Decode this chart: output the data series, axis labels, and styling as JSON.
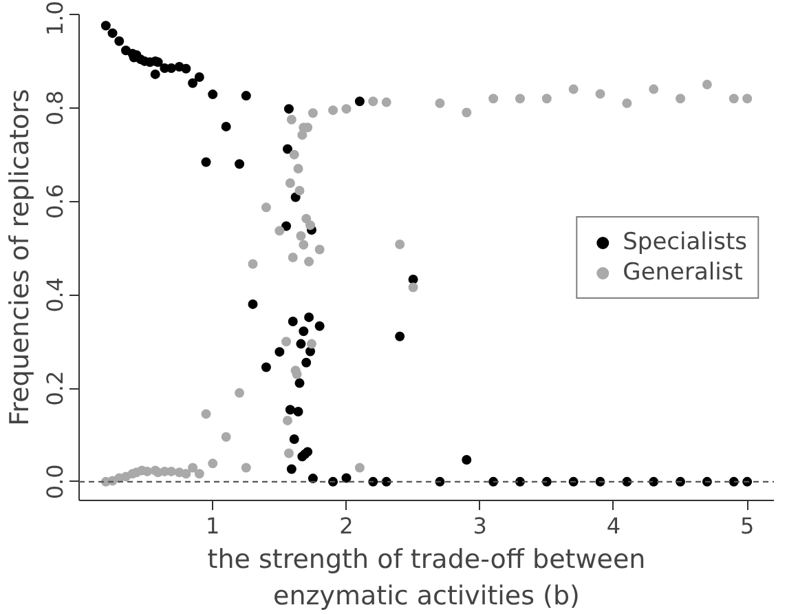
{
  "chart_data": {
    "type": "scatter",
    "xlabel": "the strength of trade-off between enzymatic activities (b)",
    "ylabel": "Frequencies of replicators",
    "xlim": [
      0.0,
      5.2
    ],
    "xticks": [
      1,
      2,
      3,
      4,
      5
    ],
    "ylim": [
      -0.04,
      1.0
    ],
    "yticks": [
      {
        "value": 0,
        "label": "0.0"
      },
      {
        "value": 0.2,
        "label": "0.2"
      },
      {
        "value": 0.4,
        "label": "0.4"
      },
      {
        "value": 0.6,
        "label": "0.6"
      },
      {
        "value": 0.8,
        "label": "0.8"
      },
      {
        "value": 1,
        "label": "1.0"
      }
    ],
    "grid": false,
    "legend": "right",
    "marker": "circle",
    "ref_lines": [
      {
        "axis": "y",
        "value": 0,
        "color": "#555555",
        "line_style": "dashed"
      }
    ],
    "series": [
      {
        "name": "Specialists",
        "color": "#000000",
        "x": [
          0.2,
          0.25,
          0.3,
          0.35,
          0.4,
          0.43,
          0.41,
          0.46,
          0.49,
          0.53,
          0.57,
          0.59,
          0.57,
          0.64,
          0.69,
          0.75,
          0.8,
          0.85,
          0.9,
          1.0,
          1.25,
          1.1,
          0.95,
          1.2,
          1.57,
          1.56,
          1.62,
          1.55,
          1.74,
          2.1,
          1.3,
          1.6,
          1.72,
          1.68,
          1.8,
          1.66,
          1.73,
          1.5,
          1.4,
          1.7,
          1.65,
          1.58,
          1.64,
          1.61,
          1.71,
          1.67,
          1.69,
          1.59,
          1.75,
          1.9,
          2.0,
          2.2,
          2.3,
          2.4,
          2.5,
          2.7,
          2.9,
          3.1,
          3.3,
          3.5,
          3.7,
          3.9,
          4.1,
          4.3,
          4.5,
          4.7,
          4.9,
          5.0
        ],
        "values": [
          0.976,
          0.96,
          0.943,
          0.923,
          0.916,
          0.913,
          0.908,
          0.904,
          0.9,
          0.898,
          0.9,
          0.898,
          0.872,
          0.885,
          0.885,
          0.888,
          0.884,
          0.853,
          0.866,
          0.829,
          0.826,
          0.76,
          0.684,
          0.68,
          0.798,
          0.712,
          0.609,
          0.547,
          0.539,
          0.814,
          0.38,
          0.343,
          0.352,
          0.322,
          0.333,
          0.295,
          0.279,
          0.278,
          0.245,
          0.255,
          0.211,
          0.154,
          0.15,
          0.091,
          0.064,
          0.054,
          0.059,
          0.027,
          0.007,
          0.0,
          0.008,
          0.0,
          0.0,
          0.311,
          0.433,
          0.0,
          0.047,
          0.0,
          0.0,
          0.0,
          0.0,
          0.0,
          0.0,
          0.0,
          0.0,
          0.0,
          0.0,
          0.0
        ]
      },
      {
        "name": "Generalist",
        "color": "#a9a9a9",
        "x": [
          0.2,
          0.25,
          0.3,
          0.35,
          0.4,
          0.43,
          0.47,
          0.51,
          0.57,
          0.59,
          0.64,
          0.69,
          0.75,
          0.8,
          0.85,
          0.9,
          1.0,
          1.1,
          0.95,
          1.25,
          1.2,
          1.3,
          1.4,
          1.5,
          1.55,
          1.56,
          1.57,
          1.58,
          1.59,
          1.6,
          1.61,
          1.62,
          1.63,
          1.64,
          1.65,
          1.66,
          1.67,
          1.68,
          1.68,
          1.7,
          1.71,
          1.72,
          1.73,
          1.74,
          1.75,
          1.8,
          1.9,
          2.0,
          2.1,
          2.2,
          2.3,
          2.4,
          2.5,
          2.7,
          2.9,
          3.1,
          3.3,
          3.5,
          3.7,
          3.9,
          4.1,
          4.3,
          4.5,
          4.7,
          4.9,
          5.0
        ],
        "values": [
          0.0,
          0.002,
          0.008,
          0.011,
          0.017,
          0.02,
          0.024,
          0.022,
          0.024,
          0.02,
          0.022,
          0.022,
          0.02,
          0.017,
          0.03,
          0.017,
          0.039,
          0.096,
          0.145,
          0.03,
          0.19,
          0.466,
          0.587,
          0.537,
          0.3,
          0.131,
          0.061,
          0.639,
          0.775,
          0.48,
          0.7,
          0.238,
          0.23,
          0.67,
          0.623,
          0.526,
          0.742,
          0.758,
          0.507,
          0.563,
          0.758,
          0.471,
          0.549,
          0.295,
          0.789,
          0.497,
          0.795,
          0.798,
          0.03,
          0.814,
          0.812,
          0.508,
          0.416,
          0.81,
          0.79,
          0.82,
          0.82,
          0.82,
          0.84,
          0.83,
          0.81,
          0.84,
          0.82,
          0.85,
          0.82,
          0.82
        ]
      }
    ]
  }
}
